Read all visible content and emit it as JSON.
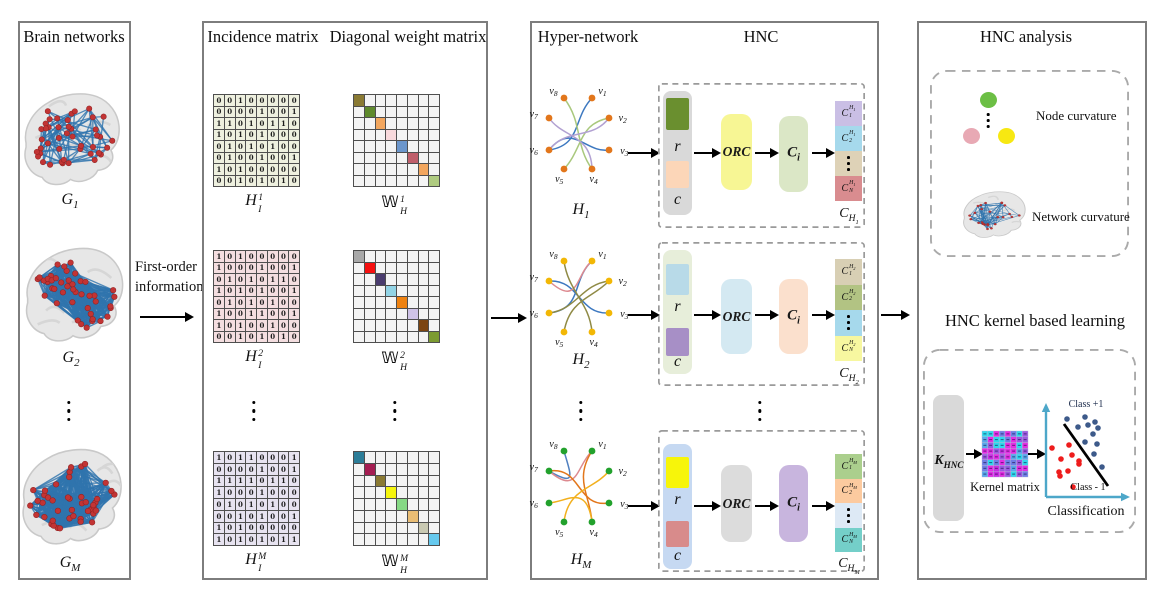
{
  "panel1": {
    "title": "Brain networks",
    "brains": [
      {
        "label": {
          "base": "G",
          "sub": "1"
        },
        "density": 0.55,
        "seed": 11
      },
      {
        "label": {
          "base": "G",
          "sub": "2"
        },
        "density": 1.0,
        "seed": 23
      },
      {
        "label": {
          "base": "G",
          "sub": "M"
        },
        "density": 0.95,
        "seed": 37
      }
    ],
    "edge_color": "#2f74ad",
    "node_color": "#c23434"
  },
  "connector": {
    "label": "First-order information"
  },
  "panel2": {
    "title_incidence": "Incidence matrix",
    "title_weight": "Diagonal weight matrix",
    "incidence_matrices": [
      {
        "label": {
          "base": "H",
          "sub": "I",
          "sup": "1"
        },
        "cell_bg": "#eef0df",
        "values": [
          [
            0,
            0,
            1,
            0,
            0,
            0,
            0,
            0
          ],
          [
            0,
            0,
            0,
            0,
            1,
            0,
            0,
            1
          ],
          [
            1,
            1,
            0,
            1,
            0,
            1,
            1,
            0
          ],
          [
            1,
            0,
            1,
            0,
            1,
            0,
            0,
            0
          ],
          [
            0,
            1,
            0,
            1,
            0,
            1,
            0,
            0
          ],
          [
            0,
            1,
            0,
            0,
            1,
            0,
            0,
            1
          ],
          [
            1,
            0,
            1,
            0,
            0,
            0,
            0,
            0
          ],
          [
            0,
            0,
            1,
            0,
            1,
            0,
            1,
            0
          ]
        ]
      },
      {
        "label": {
          "base": "H",
          "sub": "I",
          "sup": "2"
        },
        "cell_bg": "#f4dee0",
        "values": [
          [
            1,
            0,
            1,
            0,
            0,
            0,
            0,
            0
          ],
          [
            1,
            0,
            0,
            0,
            1,
            0,
            0,
            1
          ],
          [
            0,
            1,
            0,
            1,
            0,
            1,
            1,
            0
          ],
          [
            1,
            0,
            1,
            0,
            1,
            0,
            0,
            1
          ],
          [
            0,
            1,
            0,
            1,
            0,
            1,
            0,
            0
          ],
          [
            1,
            0,
            0,
            1,
            1,
            0,
            0,
            1
          ],
          [
            1,
            0,
            1,
            0,
            0,
            1,
            0,
            0
          ],
          [
            0,
            0,
            1,
            0,
            1,
            0,
            1,
            0
          ]
        ]
      },
      {
        "label": {
          "base": "H",
          "sub": "I",
          "sup": "M"
        },
        "cell_bg": "#e7e3f0",
        "values": [
          [
            1,
            0,
            1,
            1,
            0,
            0,
            0,
            1
          ],
          [
            0,
            0,
            0,
            0,
            1,
            0,
            0,
            1
          ],
          [
            1,
            1,
            1,
            1,
            0,
            1,
            1,
            0
          ],
          [
            1,
            0,
            0,
            0,
            1,
            0,
            0,
            0
          ],
          [
            0,
            1,
            0,
            1,
            0,
            1,
            0,
            0
          ],
          [
            0,
            0,
            1,
            0,
            1,
            0,
            0,
            1
          ],
          [
            1,
            0,
            1,
            0,
            0,
            0,
            0,
            0
          ],
          [
            1,
            0,
            1,
            0,
            1,
            0,
            1,
            1
          ]
        ]
      }
    ],
    "weight_matrices": [
      {
        "label": {
          "base": "𝕎",
          "sub": "H",
          "sup": "1",
          "bb": true
        },
        "cell_bg": "#f4f4f4",
        "diag_colors": [
          "#8a7a33",
          "#5f8a2d",
          "#f2a65e",
          "#f8d9dc",
          "#6b96cc",
          "#c05f6b",
          "#f2a65e",
          "#afcb80"
        ]
      },
      {
        "label": {
          "base": "𝕎",
          "sub": "H",
          "sup": "2",
          "bb": true
        },
        "cell_bg": "#f4f4f4",
        "diag_colors": [
          "#a9a9a9",
          "#f50f0f",
          "#4a3c6e",
          "#92d4e6",
          "#ef8211",
          "#cfc3e8",
          "#7c4511",
          "#7c9b31"
        ]
      },
      {
        "label": {
          "base": "𝕎",
          "sub": "H",
          "sup": "M",
          "bb": true
        },
        "cell_bg": "#f4f4f4",
        "diag_colors": [
          "#2c7d98",
          "#a41d52",
          "#8a7a33",
          "#f5f50c",
          "#86d985",
          "#e9bd74",
          "#c9c9b2",
          "#66c9ee"
        ]
      }
    ]
  },
  "panel3": {
    "title_hyper": "Hyper-network",
    "title_hnc": "HNC",
    "rows": [
      {
        "graph_label": {
          "base": "H",
          "sub": "1"
        },
        "node_color": "#e2761b",
        "node_stroke": "#b55a10",
        "node_labels": [
          "v_1",
          "v_2",
          "v_3",
          "v_4",
          "v_5",
          "v_6",
          "v_7",
          "v_8"
        ],
        "edges": [
          {
            "a": 1,
            "b": 6,
            "c": "#3c78c0",
            "k": 12
          },
          {
            "a": 6,
            "b": 3,
            "c": "#3c78c0",
            "k": -16
          },
          {
            "a": 8,
            "b": 4,
            "c": "#a9c87d",
            "k": -8
          },
          {
            "a": 2,
            "b": 5,
            "c": "#a9c87d",
            "k": 10
          },
          {
            "a": 7,
            "b": 4,
            "c": "#b2a1d2",
            "k": 12
          },
          {
            "a": 2,
            "b": 6,
            "c": "#b2a1d2",
            "k": -12
          }
        ],
        "container_bg": "#d9d9d9",
        "r_bg": "#6a8f2f",
        "c_bg": "#fcd6b8",
        "r_label": "r",
        "c_label": "c",
        "orc_label": "ORC",
        "orc_bg": "#f7f694",
        "ci_label": {
          "base": "C",
          "sub": "i"
        },
        "ci_bg": "#dbe7c6",
        "out_cells": [
          {
            "bg": "#cabfe5",
            "label": {
              "base": "C",
              "sub": "1",
              "sup": "H_1"
            }
          },
          {
            "bg": "#a6d9ec",
            "label": {
              "base": "C",
              "sub": "2",
              "sup": "H_1"
            }
          },
          {
            "bg": "#ded2b7",
            "dots": true
          },
          {
            "bg": "#d98c8f",
            "label": {
              "base": "C",
              "sub": "N",
              "sup": "H_1"
            }
          }
        ],
        "out_label": {
          "base": "C",
          "sub": "H_1"
        }
      },
      {
        "graph_label": {
          "base": "H",
          "sub": "2"
        },
        "node_color": "#f2b705",
        "node_stroke": "#c29204",
        "node_labels": [
          "v_1",
          "v_2",
          "v_3",
          "v_4",
          "v_5",
          "v_6",
          "v_7",
          "v_8"
        ],
        "edges": [
          {
            "a": 1,
            "b": 6,
            "c": "#3c78c0",
            "k": 14
          },
          {
            "a": 7,
            "b": 3,
            "c": "#3c78c0",
            "k": -16
          },
          {
            "a": 7,
            "b": 1,
            "c": "#dd8a90",
            "k": 16
          },
          {
            "a": 8,
            "b": 4,
            "c": "#8f8a45",
            "k": 8
          },
          {
            "a": 2,
            "b": 5,
            "c": "#8f8a45",
            "k": -8
          },
          {
            "a": 6,
            "b": 2,
            "c": "#8f8a45",
            "k": 10
          }
        ],
        "container_bg": "#e7eeda",
        "r_bg": "#b8dae8",
        "c_bg": "#a78fc6",
        "r_label": "r",
        "c_label": "c",
        "orc_label": "ORC",
        "orc_bg": "#d4e9f2",
        "ci_label": {
          "base": "C",
          "sub": "i"
        },
        "ci_bg": "#fbe0cd",
        "out_cells": [
          {
            "bg": "#d8cfb4",
            "label": {
              "base": "C",
              "sub": "1",
              "sup": "H_2"
            }
          },
          {
            "bg": "#b2c383",
            "label": {
              "base": "C",
              "sub": "2",
              "sup": "H_2"
            }
          },
          {
            "bg": "#a6d9ec",
            "dots": true
          },
          {
            "bg": "#f7f7a0",
            "label": {
              "base": "C",
              "sub": "N",
              "sup": "H_2"
            }
          }
        ],
        "out_label": {
          "base": "C",
          "sub": "H_2"
        }
      },
      {
        "graph_label": {
          "base": "H",
          "sub": "M"
        },
        "node_color": "#22a12c",
        "node_stroke": "#157a1e",
        "node_labels": [
          "v_1",
          "v_2",
          "v_3",
          "v_4",
          "v_5",
          "v_6",
          "v_7",
          "v_8"
        ],
        "edges": [
          {
            "a": 7,
            "b": 8,
            "c": "#5080c0",
            "k": 6
          },
          {
            "a": 7,
            "b": 1,
            "c": "#dd8a90",
            "k": 14
          },
          {
            "a": 7,
            "b": 3,
            "c": "#e2761b",
            "k": -20
          },
          {
            "a": 1,
            "b": 4,
            "c": "#e2761b",
            "k": 8
          },
          {
            "a": 2,
            "b": 5,
            "c": "#f2b01e",
            "k": -10
          },
          {
            "a": 6,
            "b": 4,
            "c": "#f2b01e",
            "k": 12
          }
        ],
        "container_bg": "#c6d9f2",
        "r_bg": "#f7f50a",
        "c_bg": "#d88b8b",
        "r_label": "r",
        "c_label": "c",
        "orc_label": "ORC",
        "orc_bg": "#dcdcdc",
        "ci_label": {
          "base": "C",
          "sub": "i"
        },
        "ci_bg": "#c8b5de",
        "out_cells": [
          {
            "bg": "#abcf8d",
            "label": {
              "base": "C",
              "sub": "1",
              "sup": "H_M"
            }
          },
          {
            "bg": "#fcca9f",
            "label": {
              "base": "C",
              "sub": "2",
              "sup": "H_M"
            }
          },
          {
            "bg": "#dde9f5",
            "dots": true
          },
          {
            "bg": "#74cfc9",
            "label": {
              "base": "C",
              "sub": "N",
              "sup": "H_M"
            }
          }
        ],
        "out_label": {
          "base": "C",
          "sub": "H_M"
        }
      }
    ]
  },
  "panel4": {
    "title": "HNC analysis",
    "node_curvature_label": "Node curvature",
    "network_curvature_label": "Network curvature",
    "curvature_circles": [
      "#6cbf45",
      "#e8a9b4",
      "#f7e812"
    ],
    "kernel_section": {
      "title": "HNC kernel based learning",
      "k_label": {
        "base": "K",
        "sub": "HNC"
      },
      "matrix_label": "Kernel matrix",
      "class_pos": "Class +1",
      "class_neg": "Class - 1",
      "classification_label": "Classification",
      "axis_color": "#4da7c9",
      "pos_color": "#3d5a8a",
      "neg_color": "#ee1c1c",
      "kernel_palette": [
        "#e32ee3",
        "#9b59e0",
        "#6e7ee6",
        "#2ed9ec",
        "#58a8ec",
        "#c92ee3"
      ],
      "pos_points": [
        [
          27,
          24
        ],
        [
          45,
          22
        ],
        [
          55,
          27
        ],
        [
          38,
          32
        ],
        [
          48,
          30
        ],
        [
          58,
          33
        ],
        [
          53,
          39
        ],
        [
          45,
          47
        ],
        [
          57,
          49
        ],
        [
          54,
          59
        ],
        [
          62,
          72
        ]
      ],
      "neg_points": [
        [
          12,
          53
        ],
        [
          29,
          50
        ],
        [
          21,
          64
        ],
        [
          32,
          60
        ],
        [
          39,
          66
        ],
        [
          28,
          76
        ],
        [
          19,
          77
        ],
        [
          20,
          81
        ],
        [
          39,
          69
        ],
        [
          33,
          92
        ]
      ]
    }
  }
}
